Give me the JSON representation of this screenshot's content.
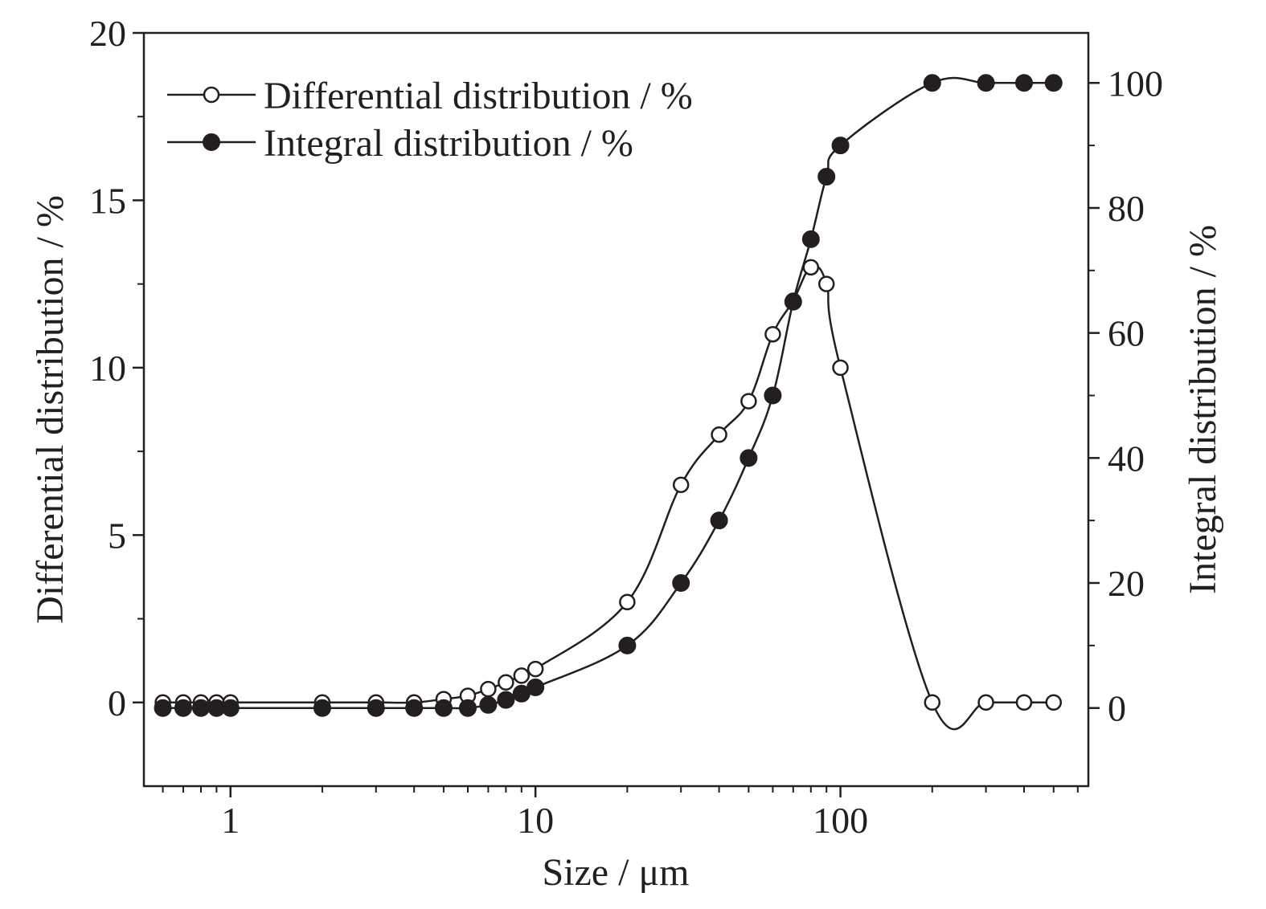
{
  "chart_data": {
    "type": "line",
    "xlabel": "Size / μm",
    "ylabel_left": "Differential distribution / %",
    "ylabel_right": "Integral distribution / %",
    "x_scale": "log",
    "xlim": [
      0.52,
      650
    ],
    "ylim_left": [
      -2.5,
      20
    ],
    "ylim_right": [
      -12.5,
      108
    ],
    "x_ticks": [
      1,
      10,
      100
    ],
    "x_tick_labels": [
      "1",
      "10",
      "100"
    ],
    "y_left_ticks": [
      0,
      5,
      10,
      15,
      20
    ],
    "y_left_tick_labels": [
      "0",
      "5",
      "10",
      "15",
      "20"
    ],
    "y_right_ticks": [
      0,
      20,
      40,
      60,
      80,
      100
    ],
    "y_right_tick_labels": [
      "0",
      "20",
      "40",
      "60",
      "80",
      "100"
    ],
    "legend_position": "top-left",
    "grid": false,
    "colors": {
      "line": "#231f20",
      "open_marker_fill": "#ffffff",
      "filled_marker_fill": "#231f20"
    },
    "series": [
      {
        "name": "Differential distribution / %",
        "axis": "left",
        "marker": "open-circle",
        "x": [
          0.6,
          0.7,
          0.8,
          0.9,
          1,
          2,
          3,
          4,
          5,
          6,
          7,
          8,
          9,
          10,
          20,
          30,
          40,
          50,
          60,
          70,
          80,
          90,
          100,
          200,
          300,
          400,
          500
        ],
        "y": [
          0,
          0,
          0,
          0,
          0,
          0,
          0,
          0,
          0.1,
          0.2,
          0.4,
          0.6,
          0.8,
          1.0,
          3.0,
          6.5,
          8.0,
          9.0,
          11.0,
          12.0,
          13.0,
          12.5,
          10.0,
          0,
          0,
          0,
          0
        ]
      },
      {
        "name": "Integral distribution / %",
        "axis": "right",
        "marker": "filled-circle",
        "x": [
          0.6,
          0.7,
          0.8,
          0.9,
          1,
          2,
          3,
          4,
          5,
          6,
          7,
          8,
          9,
          10,
          20,
          30,
          40,
          50,
          60,
          70,
          80,
          90,
          100,
          200,
          300,
          400,
          500
        ],
        "y": [
          0,
          0,
          0,
          0,
          0,
          0,
          0,
          0,
          0,
          0,
          0.5,
          1.3,
          2.3,
          3.3,
          10,
          20,
          30,
          40,
          50,
          65,
          75,
          85,
          90,
          100,
          100,
          100,
          100
        ]
      }
    ]
  }
}
